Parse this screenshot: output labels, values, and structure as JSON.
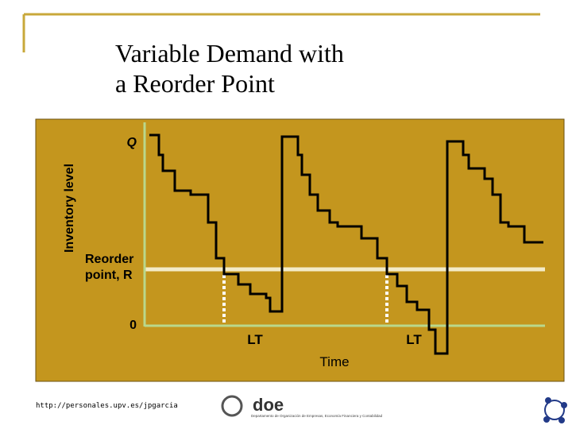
{
  "header": {
    "title_lines": [
      "Variable Demand with",
      "a Reorder Point"
    ]
  },
  "diagram": {
    "y_axis_label": "Inventory level",
    "q_label": "Q",
    "reorder_label_lines": [
      "Reorder",
      "point, R"
    ],
    "zero_label": "0",
    "lead_time_labels": [
      "LT",
      "LT"
    ],
    "x_axis_label": "Time"
  },
  "footer": {
    "url": "http://personales.upv.es/jpgarcia",
    "logo_text": "doe",
    "department": "Departamento de Organización de Empresas, Economía Financiera y Contabilidad"
  }
}
